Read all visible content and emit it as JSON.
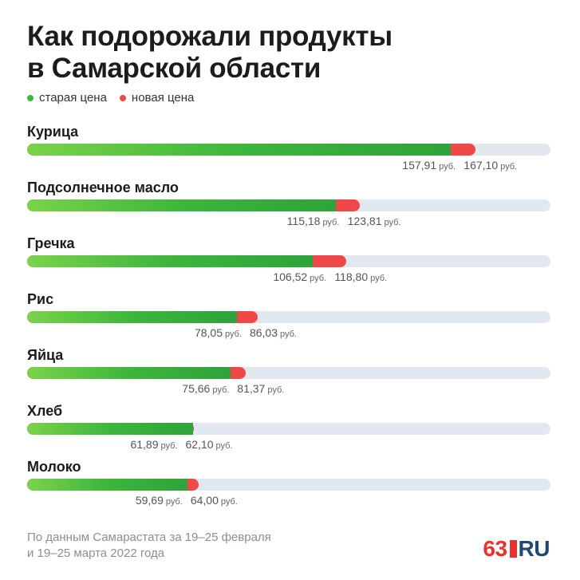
{
  "title_lines": [
    "Как подорожали продукты",
    "в Самарской области"
  ],
  "legend": {
    "old": {
      "label": "старая цена",
      "color": "#3db63c"
    },
    "new": {
      "label": "новая цена",
      "color": "#f04848"
    }
  },
  "chart_data": {
    "type": "bar",
    "title": "Как подорожали продукты в Самарской области",
    "orientation": "horizontal",
    "unit": "руб.",
    "xlim": [
      0,
      195
    ],
    "categories": [
      "Курица",
      "Подсолнечное масло",
      "Гречка",
      "Рис",
      "Яйца",
      "Хлеб",
      "Молоко"
    ],
    "series": [
      {
        "name": "старая цена",
        "values": [
          157.91,
          115.18,
          106.52,
          78.05,
          75.66,
          61.89,
          59.69
        ]
      },
      {
        "name": "новая цена",
        "values": [
          167.1,
          123.81,
          118.8,
          86.03,
          81.37,
          62.1,
          64.0
        ]
      }
    ],
    "value_labels": {
      "old": [
        "157,91",
        "115,18",
        "106,52",
        "78,05",
        "75,66",
        "61,89",
        "59,69"
      ],
      "new": [
        "167,10",
        "123,81",
        "118,80",
        "86,03",
        "81,37",
        "62,10",
        "64,00"
      ]
    }
  },
  "source": [
    "По данным Самарастата за 19–25 февраля",
    "и 19–25 марта 2022 года"
  ],
  "logo": {
    "number": "63",
    "suffix": "RU",
    "color": "#e8322c",
    "suffix_color": "#23466e"
  }
}
